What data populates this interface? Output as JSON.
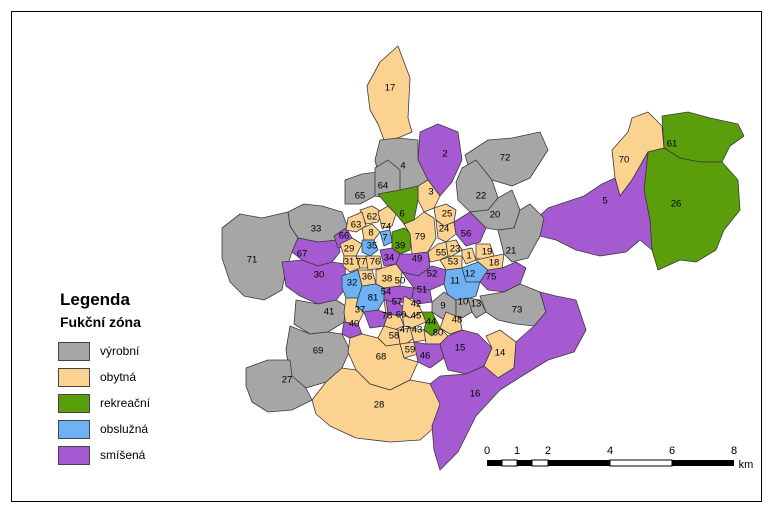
{
  "legend": {
    "title": "Legenda",
    "subtitle": "Fukční zóna",
    "items": [
      {
        "key": "vyrobni",
        "label": "výrobní",
        "color": "#a6a6a6"
      },
      {
        "key": "obytna",
        "label": "obytná",
        "color": "#fcd290"
      },
      {
        "key": "rekreacni",
        "label": "rekreační",
        "color": "#5a9e0c"
      },
      {
        "key": "obsluzna",
        "label": "obslužná",
        "color": "#6eb2f5"
      },
      {
        "key": "smisena",
        "label": "smíšená",
        "color": "#a55ad2"
      }
    ]
  },
  "scale_bar": {
    "ticks": [
      "0",
      "1",
      "2",
      "4",
      "6",
      "8"
    ],
    "unit": "km"
  },
  "regions": [
    {
      "id": "17",
      "zone": "obytna"
    },
    {
      "id": "72",
      "zone": "vyrobni"
    },
    {
      "id": "2",
      "zone": "smisena"
    },
    {
      "id": "4",
      "zone": "vyrobni"
    },
    {
      "id": "70",
      "zone": "obytna"
    },
    {
      "id": "61",
      "zone": "rekreacni"
    },
    {
      "id": "26",
      "zone": "rekreacni"
    },
    {
      "id": "5",
      "zone": "smisena"
    },
    {
      "id": "65",
      "zone": "vyrobni"
    },
    {
      "id": "64",
      "zone": "vyrobni"
    },
    {
      "id": "3",
      "zone": "obytna"
    },
    {
      "id": "22",
      "zone": "vyrobni"
    },
    {
      "id": "20",
      "zone": "vyrobni"
    },
    {
      "id": "21",
      "zone": "vyrobni"
    },
    {
      "id": "33",
      "zone": "vyrobni"
    },
    {
      "id": "71",
      "zone": "vyrobni"
    },
    {
      "id": "67",
      "zone": "smisena"
    },
    {
      "id": "66",
      "zone": "smisena"
    },
    {
      "id": "30",
      "zone": "smisena"
    },
    {
      "id": "62",
      "zone": "obytna"
    },
    {
      "id": "74",
      "zone": "obytna"
    },
    {
      "id": "63",
      "zone": "obytna"
    },
    {
      "id": "6",
      "zone": "rekreacni"
    },
    {
      "id": "8",
      "zone": "obytna"
    },
    {
      "id": "29",
      "zone": "obytna"
    },
    {
      "id": "35",
      "zone": "obsluzna"
    },
    {
      "id": "39",
      "zone": "rekreacni"
    },
    {
      "id": "79",
      "zone": "obytna"
    },
    {
      "id": "25",
      "zone": "obytna"
    },
    {
      "id": "24",
      "zone": "obytna"
    },
    {
      "id": "56",
      "zone": "smisena"
    },
    {
      "id": "31",
      "zone": "obytna"
    },
    {
      "id": "77",
      "zone": "obytna"
    },
    {
      "id": "76",
      "zone": "obytna"
    },
    {
      "id": "34",
      "zone": "smisena"
    },
    {
      "id": "49",
      "zone": "smisena"
    },
    {
      "id": "55",
      "zone": "obytna"
    },
    {
      "id": "23",
      "zone": "obytna"
    },
    {
      "id": "53",
      "zone": "obytna"
    },
    {
      "id": "1",
      "zone": "obytna"
    },
    {
      "id": "19",
      "zone": "obytna"
    },
    {
      "id": "18",
      "zone": "obytna"
    },
    {
      "id": "12",
      "zone": "obsluzna"
    },
    {
      "id": "36",
      "zone": "obytna"
    },
    {
      "id": "38",
      "zone": "obytna"
    },
    {
      "id": "52",
      "zone": "smisena"
    },
    {
      "id": "11",
      "zone": "obsluzna"
    },
    {
      "id": "75",
      "zone": "smisena"
    },
    {
      "id": "32",
      "zone": "obsluzna"
    },
    {
      "id": "50",
      "zone": "smisena"
    },
    {
      "id": "81",
      "zone": "obsluzna"
    },
    {
      "id": "54",
      "zone": "obytna"
    },
    {
      "id": "51",
      "zone": "smisena"
    },
    {
      "id": "57",
      "zone": "smisena"
    },
    {
      "id": "9",
      "zone": "vyrobni"
    },
    {
      "id": "10",
      "zone": "vyrobni"
    },
    {
      "id": "13",
      "zone": "vyrobni"
    },
    {
      "id": "73",
      "zone": "vyrobni"
    },
    {
      "id": "41",
      "zone": "vyrobni"
    },
    {
      "id": "37",
      "zone": "obytna"
    },
    {
      "id": "40",
      "zone": "smisena"
    },
    {
      "id": "78",
      "zone": "smisena"
    },
    {
      "id": "60",
      "zone": "obytna"
    },
    {
      "id": "42",
      "zone": "obytna"
    },
    {
      "id": "45",
      "zone": "obytna"
    },
    {
      "id": "48",
      "zone": "obytna"
    },
    {
      "id": "44",
      "zone": "rekreacni"
    },
    {
      "id": "58",
      "zone": "obytna"
    },
    {
      "id": "47",
      "zone": "obytna"
    },
    {
      "id": "43",
      "zone": "obytna"
    },
    {
      "id": "80",
      "zone": "obytna"
    },
    {
      "id": "59",
      "zone": "obytna"
    },
    {
      "id": "46",
      "zone": "smisena"
    },
    {
      "id": "15",
      "zone": "smisena"
    },
    {
      "id": "14",
      "zone": "obytna"
    },
    {
      "id": "69",
      "zone": "vyrobni"
    },
    {
      "id": "68",
      "zone": "obytna"
    },
    {
      "id": "27",
      "zone": "vyrobni"
    },
    {
      "id": "28",
      "zone": "obytna"
    },
    {
      "id": "16",
      "zone": "smisena"
    },
    {
      "id": "7",
      "zone": "obsluzna"
    }
  ]
}
